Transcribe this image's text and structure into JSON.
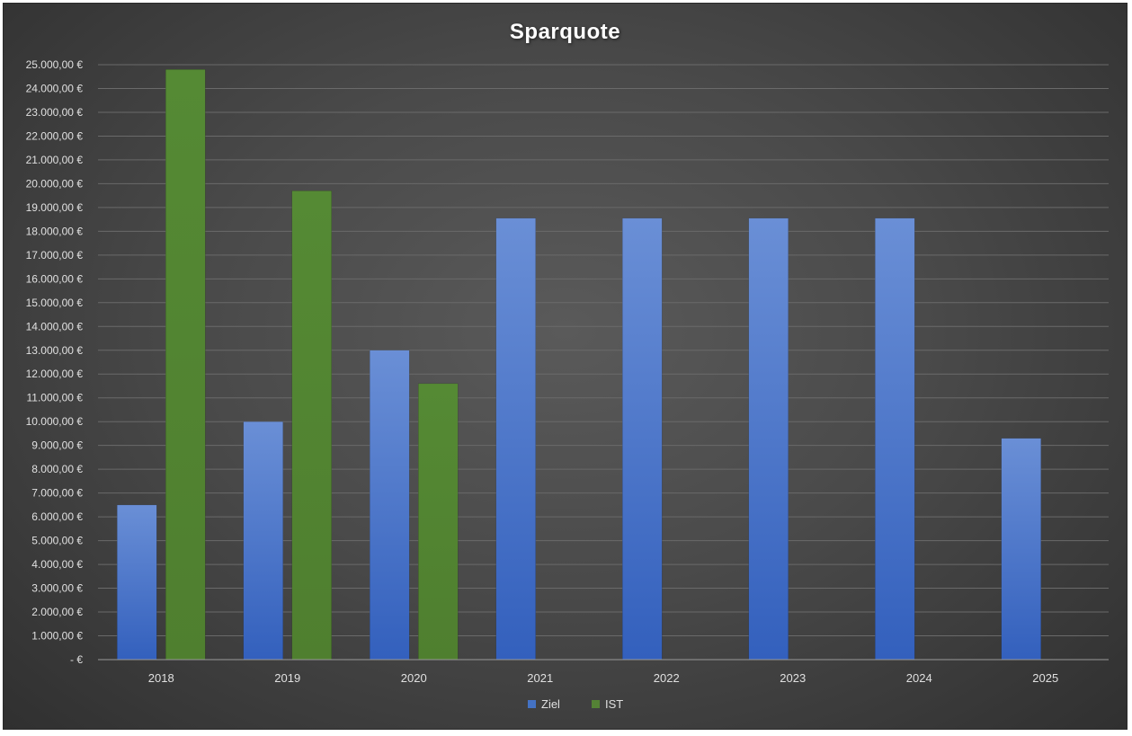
{
  "chart_data": {
    "type": "bar",
    "title": "Sparquote",
    "categories": [
      "2018",
      "2019",
      "2020",
      "2021",
      "2022",
      "2023",
      "2024",
      "2025"
    ],
    "series": [
      {
        "name": "Ziel",
        "color": "#4472c4",
        "values": [
          6500,
          10000,
          13000,
          18550,
          18550,
          18550,
          18550,
          9300
        ]
      },
      {
        "name": "IST",
        "color": "#548235",
        "values": [
          24800,
          19700,
          11600,
          null,
          null,
          null,
          null,
          null
        ]
      }
    ],
    "ylim": [
      0,
      25000
    ],
    "y_ticks": [
      0,
      1000,
      2000,
      3000,
      4000,
      5000,
      6000,
      7000,
      8000,
      9000,
      10000,
      11000,
      12000,
      13000,
      14000,
      15000,
      16000,
      17000,
      18000,
      19000,
      20000,
      21000,
      22000,
      23000,
      24000,
      25000
    ],
    "y_tick_labels": [
      "-  €",
      "1.000,00 €",
      "2.000,00 €",
      "3.000,00 €",
      "4.000,00 €",
      "5.000,00 €",
      "6.000,00 €",
      "7.000,00 €",
      "8.000,00 €",
      "9.000,00 €",
      "10.000,00 €",
      "11.000,00 €",
      "12.000,00 €",
      "13.000,00 €",
      "14.000,00 €",
      "15.000,00 €",
      "16.000,00 €",
      "17.000,00 €",
      "18.000,00 €",
      "19.000,00 €",
      "20.000,00 €",
      "21.000,00 €",
      "22.000,00 €",
      "23.000,00 €",
      "24.000,00 €",
      "25.000,00 €"
    ],
    "grid": true,
    "legend_position": "bottom"
  }
}
